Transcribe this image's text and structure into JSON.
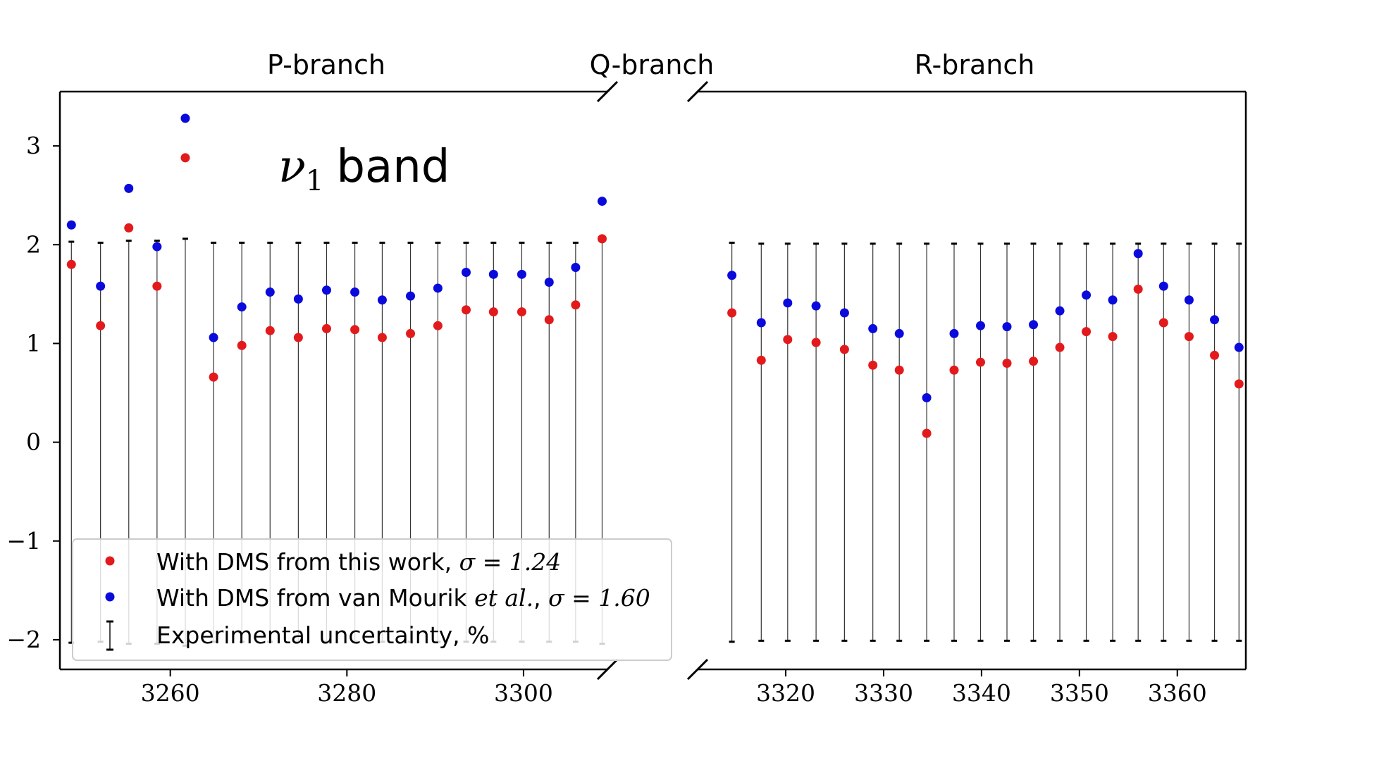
{
  "chart_data": {
    "type": "scatter",
    "annotation": {
      "symbol": "ν",
      "subscript": "1",
      "suffix": "band"
    },
    "yticks": [
      -2,
      -1,
      0,
      1,
      2,
      3
    ],
    "ylim": [
      -2.3,
      3.55
    ],
    "grid": false,
    "legend_position": "lower-left",
    "panels": [
      {
        "title": "P-branch",
        "xlim": [
          3247.5,
          3309.5
        ],
        "xticks": [
          3260,
          3280,
          3300
        ],
        "x": [
          3248.8,
          3252.1,
          3255.3,
          3258.5,
          3261.7,
          3264.9,
          3268.1,
          3271.3,
          3274.5,
          3277.7,
          3280.9,
          3284.0,
          3287.2,
          3290.3,
          3293.5,
          3296.6,
          3299.8,
          3302.9,
          3305.9,
          3308.9
        ],
        "series": [
          {
            "name": "With DMS from this work, σ = 1.24",
            "color": "#e31a1c",
            "values": [
              1.8,
              1.18,
              2.17,
              1.58,
              2.88,
              0.66,
              0.98,
              1.13,
              1.06,
              1.15,
              1.14,
              1.06,
              1.1,
              1.18,
              1.34,
              1.32,
              1.32,
              1.24,
              1.39,
              2.06
            ]
          },
          {
            "name": "With DMS from van Mourik et al., σ = 1.60",
            "color": "#0a0adc",
            "values": [
              2.2,
              1.58,
              2.57,
              1.98,
              3.28,
              1.06,
              1.37,
              1.52,
              1.45,
              1.54,
              1.52,
              1.44,
              1.48,
              1.56,
              1.72,
              1.7,
              1.7,
              1.62,
              1.77,
              2.44
            ]
          }
        ],
        "error": [
          2.03,
          2.02,
          2.04,
          2.04,
          2.06,
          2.02,
          2.02,
          2.02,
          2.02,
          2.02,
          2.02,
          2.02,
          2.02,
          2.02,
          2.02,
          2.02,
          2.02,
          2.02,
          2.02,
          2.04
        ]
      },
      {
        "title": "R-branch",
        "xlim": [
          3311.0,
          3367.0
        ],
        "xticks": [
          3320,
          3330,
          3340,
          3350,
          3360
        ],
        "x": [
          3314.5,
          3317.5,
          3320.2,
          3323.1,
          3326.0,
          3328.9,
          3331.6,
          3334.4,
          3337.2,
          3339.9,
          3342.6,
          3345.3,
          3348.0,
          3350.7,
          3353.4,
          3356.0,
          3358.6,
          3361.2,
          3363.8,
          3366.3
        ],
        "series": [
          {
            "name": "With DMS from this work, σ = 1.24",
            "color": "#e31a1c",
            "values": [
              1.31,
              0.83,
              1.04,
              1.01,
              0.94,
              0.78,
              0.73,
              0.09,
              0.73,
              0.81,
              0.8,
              0.82,
              0.96,
              1.12,
              1.07,
              1.55,
              1.21,
              1.07,
              0.88,
              0.59
            ]
          },
          {
            "name": "With DMS from van Mourik et al., σ = 1.60",
            "color": "#0a0adc",
            "values": [
              1.69,
              1.21,
              1.41,
              1.38,
              1.31,
              1.15,
              1.1,
              0.45,
              1.1,
              1.18,
              1.17,
              1.19,
              1.33,
              1.49,
              1.44,
              1.91,
              1.58,
              1.44,
              1.24,
              0.96
            ]
          }
        ],
        "error": [
          2.02,
          2.01,
          2.01,
          2.01,
          2.01,
          2.01,
          2.01,
          2.01,
          2.01,
          2.01,
          2.01,
          2.01,
          2.01,
          2.01,
          2.01,
          2.01,
          2.01,
          2.01,
          2.01,
          2.01
        ]
      }
    ],
    "middle_title": "Q-branch",
    "legend": {
      "entries": [
        {
          "marker": "red-dot",
          "prefix": "With DMS from this work, ",
          "math": "σ = 1.24"
        },
        {
          "marker": "blue-dot",
          "prefix": "With DMS from van Mourik ",
          "italic": "et al.",
          "suffix": ", ",
          "math": "σ = 1.60"
        },
        {
          "marker": "error-bar",
          "text": "Experimental uncertainty, %"
        }
      ]
    }
  }
}
